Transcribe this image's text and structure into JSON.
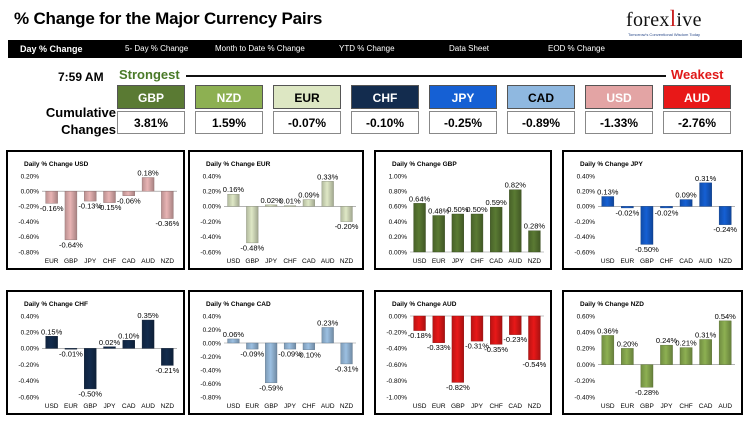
{
  "header": {
    "title": "% Change for the Major Currency Pairs",
    "logo_text": "forexlive",
    "logo_tagline": "Tomorrow's Conventional Wisdom Today"
  },
  "nav": {
    "items": [
      {
        "label": "Day % Change",
        "active": true
      },
      {
        "label": "5- Day % Change",
        "active": false
      },
      {
        "label": "Month to Date % Change",
        "active": false
      },
      {
        "label": "YTD % Change",
        "active": false
      },
      {
        "label": "Data Sheet",
        "active": false
      },
      {
        "label": "EOD % Change",
        "active": false
      }
    ]
  },
  "ranking": {
    "time": "7:59 AM",
    "strongest_label": "Strongest",
    "weakest_label": "Weakest",
    "cumulative_label": "Cumulative Changes",
    "currencies": [
      {
        "code": "GBP",
        "value": "3.81%",
        "color": "#5a7a33",
        "text_color": "#ffffff"
      },
      {
        "code": "NZD",
        "value": "1.59%",
        "color": "#8db052",
        "text_color": "#ffffff"
      },
      {
        "code": "EUR",
        "value": "-0.07%",
        "color": "#dde7c3",
        "text_color": "#000000"
      },
      {
        "code": "CHF",
        "value": "-0.10%",
        "color": "#132c4e",
        "text_color": "#ffffff"
      },
      {
        "code": "JPY",
        "value": "-0.25%",
        "color": "#1560d4",
        "text_color": "#ffffff"
      },
      {
        "code": "CAD",
        "value": "-0.89%",
        "color": "#8fb8e0",
        "text_color": "#000000"
      },
      {
        "code": "USD",
        "value": "-1.33%",
        "color": "#e3a4a4",
        "text_color": "#ffffff"
      },
      {
        "code": "AUD",
        "value": "-2.76%",
        "color": "#e81818",
        "text_color": "#ffffff"
      }
    ]
  },
  "chart_data": [
    {
      "type": "bar",
      "title": "Daily % Change USD",
      "categories": [
        "EUR",
        "GBP",
        "JPY",
        "CHF",
        "CAD",
        "AUD",
        "NZD"
      ],
      "values": [
        -0.16,
        -0.64,
        -0.13,
        -0.15,
        -0.06,
        0.18,
        -0.36
      ],
      "labels": [
        "-0.16%",
        "-0.64%",
        "-0.13%",
        "-0.15%",
        "-0.06%",
        "0.18%",
        "-0.36%"
      ],
      "color": "#e8b4b4",
      "yticks": [
        "0.20%",
        "0.00%",
        "-0.20%",
        "-0.40%",
        "-0.60%",
        "-0.80%"
      ],
      "ylim": [
        -0.8,
        0.2
      ]
    },
    {
      "type": "bar",
      "title": "Daily % Change EUR",
      "categories": [
        "USD",
        "GBP",
        "JPY",
        "CHF",
        "CAD",
        "AUD",
        "NZD"
      ],
      "values": [
        0.16,
        -0.48,
        0.02,
        0.01,
        0.09,
        0.33,
        -0.2
      ],
      "labels": [
        "0.16%",
        "-0.48%",
        "0.02%",
        "0.01%",
        "0.09%",
        "0.33%",
        "-0.20%"
      ],
      "color": "#dfe8c6",
      "yticks": [
        "0.40%",
        "0.20%",
        "0.00%",
        "-0.20%",
        "-0.40%",
        "-0.60%"
      ],
      "ylim": [
        -0.6,
        0.4
      ]
    },
    {
      "type": "bar",
      "title": "Daily % Change GBP",
      "categories": [
        "USD",
        "EUR",
        "JPY",
        "CHF",
        "CAD",
        "AUD",
        "NZD"
      ],
      "values": [
        0.64,
        0.48,
        0.5,
        0.5,
        0.59,
        0.82,
        0.28
      ],
      "labels": [
        "0.64%",
        "0.48%",
        "0.50%",
        "0.50%",
        "0.59%",
        "0.82%",
        "0.28%"
      ],
      "color": "#5a7a33",
      "yticks": [
        "1.00%",
        "0.80%",
        "0.60%",
        "0.40%",
        "0.20%",
        "0.00%"
      ],
      "ylim": [
        0,
        1.0
      ]
    },
    {
      "type": "bar",
      "title": "Daily % Change JPY",
      "categories": [
        "USD",
        "EUR",
        "GBP",
        "CHF",
        "CAD",
        "AUD",
        "NZD"
      ],
      "values": [
        0.13,
        -0.02,
        -0.5,
        -0.02,
        0.09,
        0.31,
        -0.24
      ],
      "labels": [
        "0.13%",
        "-0.02%",
        "-0.50%",
        "-0.02%",
        "0.09%",
        "0.31%",
        "-0.24%"
      ],
      "color": "#1560d4",
      "yticks": [
        "0.40%",
        "0.20%",
        "0.00%",
        "-0.20%",
        "-0.40%",
        "-0.60%"
      ],
      "ylim": [
        -0.6,
        0.4
      ]
    },
    {
      "type": "bar",
      "title": "Daily % Change CHF",
      "categories": [
        "USD",
        "EUR",
        "GBP",
        "JPY",
        "CAD",
        "AUD",
        "NZD"
      ],
      "values": [
        0.15,
        -0.01,
        -0.5,
        0.02,
        0.1,
        0.35,
        -0.21
      ],
      "labels": [
        "0.15%",
        "-0.01%",
        "-0.50%",
        "0.02%",
        "0.10%",
        "0.35%",
        "-0.21%"
      ],
      "color": "#132c4e",
      "yticks": [
        "0.40%",
        "0.20%",
        "0.00%",
        "-0.20%",
        "-0.40%",
        "-0.60%"
      ],
      "ylim": [
        -0.6,
        0.4
      ]
    },
    {
      "type": "bar",
      "title": "Daily % Change CAD",
      "categories": [
        "USD",
        "EUR",
        "GBP",
        "JPY",
        "CHF",
        "AUD",
        "NZD"
      ],
      "values": [
        0.06,
        -0.09,
        -0.59,
        -0.09,
        -0.1,
        0.23,
        -0.31
      ],
      "labels": [
        "0.06%",
        "-0.09%",
        "-0.59%",
        "-0.09%",
        "-0.10%",
        "0.23%",
        "-0.31%"
      ],
      "color": "#9cc0e2",
      "yticks": [
        "0.40%",
        "0.20%",
        "0.00%",
        "-0.20%",
        "-0.40%",
        "-0.60%",
        "-0.80%"
      ],
      "ylim": [
        -0.8,
        0.4
      ]
    },
    {
      "type": "bar",
      "title": "Daily % Change AUD",
      "categories": [
        "USD",
        "EUR",
        "GBP",
        "JPY",
        "CHF",
        "CAD",
        "NZD"
      ],
      "values": [
        -0.18,
        -0.33,
        -0.82,
        -0.31,
        -0.35,
        -0.23,
        -0.54
      ],
      "labels": [
        "-0.18%",
        "-0.33%",
        "-0.82%",
        "-0.31%",
        "-0.35%",
        "-0.23%",
        "-0.54%"
      ],
      "color": "#e81818",
      "yticks": [
        "0.00%",
        "-0.20%",
        "-0.40%",
        "-0.60%",
        "-0.80%",
        "-1.00%"
      ],
      "ylim": [
        -1.0,
        0
      ]
    },
    {
      "type": "bar",
      "title": "Daily % Change NZD",
      "categories": [
        "USD",
        "EUR",
        "GBP",
        "JPY",
        "CHF",
        "CAD",
        "AUD"
      ],
      "values": [
        0.36,
        0.2,
        -0.28,
        0.24,
        0.21,
        0.31,
        0.54
      ],
      "labels": [
        "0.36%",
        "0.20%",
        "-0.28%",
        "0.24%",
        "0.21%",
        "0.31%",
        "0.54%"
      ],
      "color": "#8db052",
      "yticks": [
        "0.60%",
        "0.40%",
        "0.20%",
        "0.00%",
        "-0.20%",
        "-0.40%"
      ],
      "ylim": [
        -0.4,
        0.6
      ]
    }
  ]
}
